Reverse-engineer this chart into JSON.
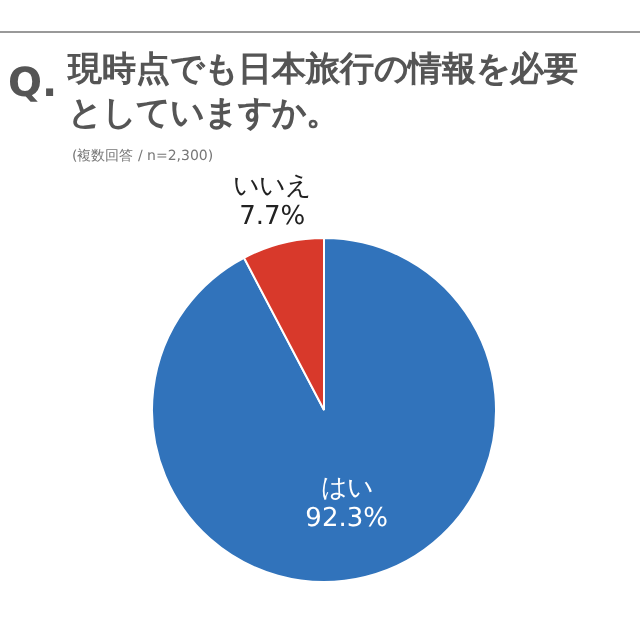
{
  "chart_data": {
    "type": "pie",
    "title": "現時点でも日本旅行の情報を必要としていますか。",
    "subtitle": "(複数回答 / n=2,300)",
    "annotations": [
      "Q."
    ],
    "categories": [
      "はい",
      "いいえ"
    ],
    "values": [
      92.3,
      7.7
    ],
    "colors": [
      "#3173bb",
      "#d8392b"
    ],
    "value_labels": [
      "92.3%",
      "7.7%"
    ]
  }
}
